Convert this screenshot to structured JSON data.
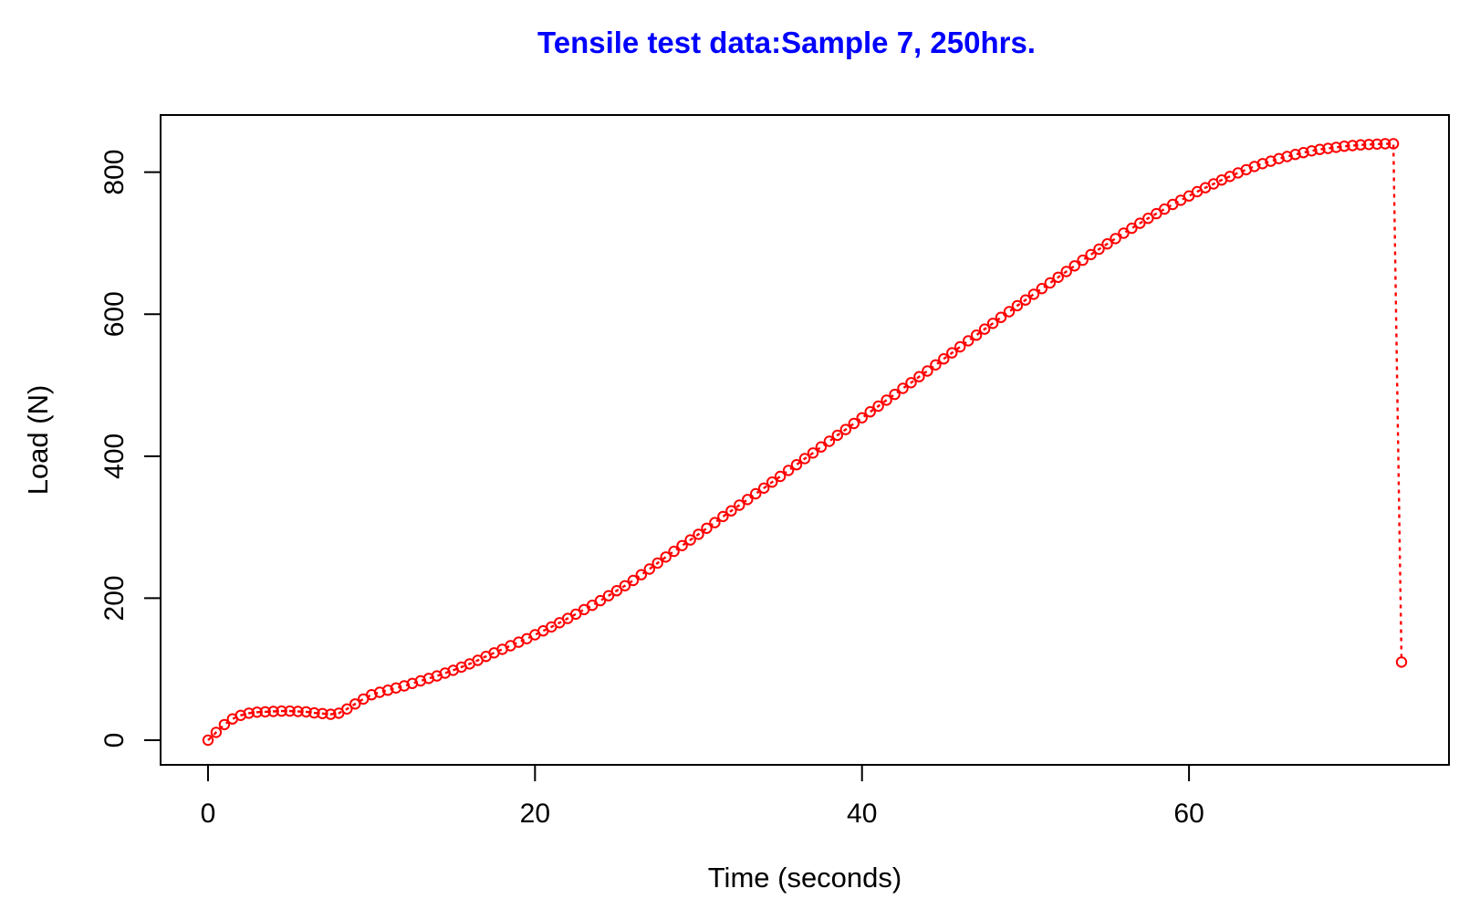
{
  "title": {
    "text": "Tensile test data:Sample 7, 250hrs.",
    "color": "#0000ff"
  },
  "chart_data": {
    "type": "scatter",
    "title": "Tensile test data:Sample 7, 250hrs.",
    "xlabel": "Time (seconds)",
    "ylabel": "Load (N)",
    "x_ticks": [
      0,
      20,
      40,
      60
    ],
    "y_ticks": [
      0,
      200,
      400,
      600,
      800
    ],
    "xlim": [
      -2.9,
      75.9
    ],
    "ylim": [
      -34.7,
      880.5
    ],
    "grid": false,
    "legend": "none",
    "marker": "open-circle",
    "line_style": "dotted",
    "series_color": "#ff0000",
    "axis_color": "#000000",
    "description": "Load rises to ~40 N plateau until ~8 s, climbs steadily to a maximum of ~840 N near 65-72 s, then fractures and drops to ~110 N at ~73 s",
    "points": [
      [
        0,
        0
      ],
      [
        0.5,
        11
      ],
      [
        1,
        22
      ],
      [
        1.5,
        30
      ],
      [
        2,
        35
      ],
      [
        2.5,
        38
      ],
      [
        3,
        39.5
      ],
      [
        3.5,
        40
      ],
      [
        4,
        40.5
      ],
      [
        4.5,
        41
      ],
      [
        5,
        41
      ],
      [
        5.5,
        40.5
      ],
      [
        6,
        40
      ],
      [
        6.5,
        38.5
      ],
      [
        7,
        37.5
      ],
      [
        7.5,
        36.5
      ],
      [
        8,
        38
      ],
      [
        8.5,
        44
      ],
      [
        9,
        51
      ],
      [
        9.5,
        58
      ],
      [
        10,
        64
      ],
      [
        10.5,
        67.5
      ],
      [
        11,
        70.5
      ],
      [
        11.5,
        73.5
      ],
      [
        12,
        76.5
      ],
      [
        12.5,
        80
      ],
      [
        13,
        83.5
      ],
      [
        13.5,
        87
      ],
      [
        14,
        90.5
      ],
      [
        14.5,
        94.5
      ],
      [
        15,
        98.5
      ],
      [
        15.5,
        103
      ],
      [
        16,
        107.5
      ],
      [
        16.5,
        112.5
      ],
      [
        17,
        118
      ],
      [
        17.5,
        123
      ],
      [
        18,
        128
      ],
      [
        18.5,
        133
      ],
      [
        19,
        138
      ],
      [
        19.5,
        143
      ],
      [
        20,
        148.5
      ],
      [
        20.5,
        154
      ],
      [
        21,
        159.5
      ],
      [
        21.5,
        165.5
      ],
      [
        22,
        171.5
      ],
      [
        22.5,
        177.5
      ],
      [
        23,
        184
      ],
      [
        23.5,
        190
      ],
      [
        24,
        196.5
      ],
      [
        24.5,
        203.5
      ],
      [
        25,
        210.5
      ],
      [
        25.5,
        217.5
      ],
      [
        26,
        225
      ],
      [
        26.5,
        233
      ],
      [
        27,
        241
      ],
      [
        27.5,
        249.5
      ],
      [
        28,
        258
      ],
      [
        28.5,
        266
      ],
      [
        29,
        274
      ],
      [
        29.5,
        282
      ],
      [
        30,
        290
      ],
      [
        30.5,
        298.5
      ],
      [
        31,
        306.5
      ],
      [
        31.5,
        315
      ],
      [
        32,
        323
      ],
      [
        32.5,
        331
      ],
      [
        33,
        339
      ],
      [
        33.5,
        347
      ],
      [
        34,
        355
      ],
      [
        34.5,
        363.5
      ],
      [
        35,
        371.5
      ],
      [
        35.5,
        380
      ],
      [
        36,
        388
      ],
      [
        36.5,
        396.5
      ],
      [
        37,
        404.5
      ],
      [
        37.5,
        413
      ],
      [
        38,
        421
      ],
      [
        38.5,
        429.5
      ],
      [
        39,
        437.5
      ],
      [
        39.5,
        446
      ],
      [
        40,
        454
      ],
      [
        40.5,
        462.5
      ],
      [
        41,
        470.5
      ],
      [
        41.5,
        479
      ],
      [
        42,
        487
      ],
      [
        42.5,
        495.5
      ],
      [
        43,
        503.5
      ],
      [
        43.5,
        512
      ],
      [
        44,
        520
      ],
      [
        44.5,
        528.5
      ],
      [
        45,
        537
      ],
      [
        45.5,
        545.5
      ],
      [
        46,
        554
      ],
      [
        46.5,
        562.5
      ],
      [
        47,
        570.5
      ],
      [
        47.5,
        579
      ],
      [
        48,
        587
      ],
      [
        48.5,
        595.5
      ],
      [
        49,
        603.5
      ],
      [
        49.5,
        612
      ],
      [
        50,
        620
      ],
      [
        50.5,
        628
      ],
      [
        51,
        636
      ],
      [
        51.5,
        644
      ],
      [
        52,
        652
      ],
      [
        52.5,
        660
      ],
      [
        53,
        668
      ],
      [
        53.5,
        676
      ],
      [
        54,
        684
      ],
      [
        54.5,
        691.5
      ],
      [
        55,
        699
      ],
      [
        55.5,
        706.5
      ],
      [
        56,
        714
      ],
      [
        56.5,
        721
      ],
      [
        57,
        728
      ],
      [
        57.5,
        735
      ],
      [
        58,
        741.5
      ],
      [
        58.5,
        748
      ],
      [
        59,
        754.5
      ],
      [
        59.5,
        760.5
      ],
      [
        60,
        766.5
      ],
      [
        60.5,
        772.5
      ],
      [
        61,
        778
      ],
      [
        61.5,
        783.5
      ],
      [
        62,
        789
      ],
      [
        62.5,
        794
      ],
      [
        63,
        799
      ],
      [
        63.5,
        803.5
      ],
      [
        64,
        808
      ],
      [
        64.5,
        812
      ],
      [
        65,
        815.5
      ],
      [
        65.5,
        819
      ],
      [
        66,
        822
      ],
      [
        66.5,
        825
      ],
      [
        67,
        827.5
      ],
      [
        67.5,
        830
      ],
      [
        68,
        832
      ],
      [
        68.5,
        833.5
      ],
      [
        69,
        835
      ],
      [
        69.5,
        836.5
      ],
      [
        70,
        837.5
      ],
      [
        70.5,
        838.5
      ],
      [
        71,
        839
      ],
      [
        71.5,
        839.5
      ],
      [
        72,
        840
      ],
      [
        72.5,
        840
      ],
      [
        73,
        110
      ]
    ]
  }
}
